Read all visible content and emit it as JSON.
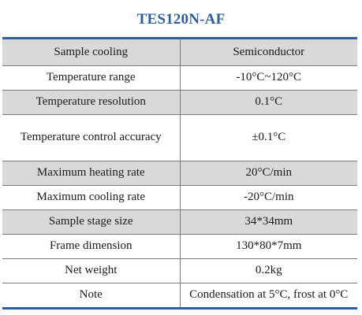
{
  "title": "TES120N-AF",
  "rows": [
    {
      "key": "Sample cooling",
      "value": "Semiconductor"
    },
    {
      "key": "Temperature range",
      "value": "-10°C~120°C"
    },
    {
      "key": "Temperature resolution",
      "value": "0.1°C"
    },
    {
      "key": "Temperature control accuracy",
      "value": "±0.1°C"
    },
    {
      "key": "Maximum heating rate",
      "value": "20°C/min"
    },
    {
      "key": "Maximum cooling rate",
      "value": "-20°C/min"
    },
    {
      "key": "Sample stage size",
      "value": "34*34mm"
    },
    {
      "key": "Frame dimension",
      "value": "130*80*7mm"
    },
    {
      "key": "Net weight",
      "value": "0.2kg"
    },
    {
      "key": "Note",
      "value": "Condensation at 5°C, frost at 0°C"
    }
  ],
  "colors": {
    "accent": "#2e5f9b",
    "row_shade": "#d9d9d9"
  }
}
